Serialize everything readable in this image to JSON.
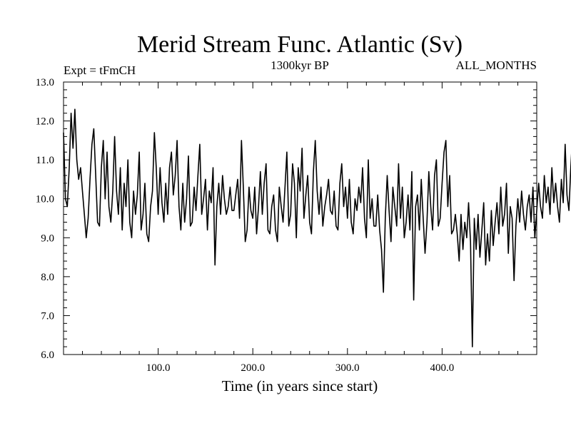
{
  "chart_data": {
    "type": "line",
    "title": "Merid Stream Func. Atlantic (Sv)",
    "subtitle_left": "Expt = tFmCH",
    "subtitle_center": "1300kyr BP",
    "subtitle_right": "ALL_MONTHS",
    "xlabel": "Time (in years since start)",
    "ylabel": "",
    "xlim": [
      0,
      500
    ],
    "ylim": [
      6.0,
      13.0
    ],
    "x_ticks": [
      100,
      200,
      300,
      400
    ],
    "x_tick_labels": [
      "100.0",
      "200.0",
      "300.0",
      "400.0"
    ],
    "y_ticks": [
      6,
      7,
      8,
      9,
      10,
      11,
      12,
      13
    ],
    "y_tick_labels": [
      "6.0",
      "7.0",
      "8.0",
      "9.0",
      "10.0",
      "11.0",
      "12.0",
      "13.0"
    ],
    "series": [
      {
        "name": "Merid Stream Func. Atlantic",
        "x_start": 0,
        "x_step": 2,
        "values": [
          11.7,
          10.0,
          9.8,
          10.8,
          12.2,
          11.3,
          12.3,
          11.0,
          10.5,
          10.8,
          10.2,
          9.6,
          9.0,
          9.5,
          10.5,
          11.4,
          11.8,
          10.6,
          9.4,
          9.3,
          10.8,
          11.5,
          10.0,
          11.2,
          9.8,
          9.4,
          10.2,
          11.6,
          10.2,
          9.6,
          10.8,
          9.2,
          10.4,
          9.8,
          11.0,
          9.4,
          9.0,
          10.2,
          9.6,
          10.1,
          11.2,
          9.2,
          9.6,
          10.4,
          9.1,
          8.9,
          9.8,
          10.2,
          11.7,
          10.8,
          9.6,
          10.8,
          9.9,
          9.4,
          10.4,
          9.6,
          10.8,
          11.2,
          10.1,
          10.6,
          11.5,
          9.8,
          9.2,
          10.4,
          9.4,
          10.0,
          11.1,
          9.3,
          9.4,
          10.3,
          9.7,
          10.6,
          11.4,
          9.6,
          10.0,
          10.5,
          9.2,
          10.2,
          9.9,
          10.8,
          8.3,
          9.8,
          10.4,
          9.6,
          10.6,
          10.0,
          9.6,
          9.8,
          10.3,
          9.7,
          9.7,
          10.1,
          10.5,
          9.5,
          11.5,
          10.3,
          8.9,
          9.2,
          10.3,
          9.7,
          9.5,
          10.3,
          9.1,
          9.8,
          10.7,
          9.6,
          10.4,
          10.9,
          9.2,
          9.1,
          9.8,
          10.1,
          9.2,
          8.9,
          10.3,
          9.8,
          9.4,
          10.3,
          11.2,
          9.3,
          9.6,
          10.9,
          10.4,
          9.0,
          10.8,
          10.2,
          11.3,
          9.5,
          10.1,
          10.6,
          9.4,
          9.1,
          10.7,
          11.5,
          10.2,
          9.6,
          10.3,
          9.3,
          9.8,
          10.1,
          10.5,
          9.7,
          9.6,
          10.2,
          9.3,
          9.2,
          10.4,
          10.9,
          9.8,
          10.3,
          9.5,
          10.5,
          9.4,
          9.1,
          10.0,
          9.7,
          10.3,
          9.9,
          10.8,
          9.5,
          9.0,
          11.0,
          9.5,
          10.0,
          9.3,
          9.3,
          10.1,
          9.2,
          8.7,
          7.6,
          9.5,
          10.6,
          9.7,
          8.9,
          10.3,
          9.8,
          9.3,
          10.9,
          9.5,
          10.3,
          9.0,
          9.4,
          10.1,
          9.2,
          10.7,
          7.4,
          9.8,
          10.1,
          9.2,
          10.5,
          9.5,
          8.6,
          9.4,
          10.7,
          9.8,
          9.2,
          10.6,
          11.0,
          9.3,
          9.5,
          10.4,
          11.2,
          11.5,
          9.8,
          10.6,
          9.1,
          9.2,
          9.6,
          9.1,
          8.4,
          9.6,
          8.7,
          9.4,
          9.0,
          9.9,
          8.9,
          6.2,
          9.5,
          8.7,
          9.6,
          8.5,
          9.2,
          9.9,
          8.3,
          9.1,
          8.4,
          9.7,
          8.8,
          9.4,
          9.9,
          9.1,
          10.3,
          9.3,
          9.6,
          10.4,
          8.6,
          9.8,
          9.5,
          7.9,
          9.3,
          10.0,
          9.4,
          10.2,
          9.6,
          9.2,
          9.8,
          10.1,
          9.4,
          10.3,
          9.0,
          9.7,
          10.4,
          9.8,
          9.5,
          10.6,
          9.9,
          10.3,
          9.6,
          10.8,
          9.9,
          10.4,
          9.8,
          9.4,
          10.5,
          9.9,
          11.4,
          10.1,
          9.7,
          10.8,
          11.7,
          9.6,
          10.4,
          11.8,
          9.8,
          10.4,
          11.2,
          10.6,
          9.1,
          9.8,
          10.4,
          11.2,
          9.3,
          9.5,
          10.8,
          9.9,
          11.0,
          10.1,
          9.4,
          10.6,
          10.3,
          10.9,
          9.6,
          10.4,
          9.5,
          9.4,
          10.1,
          9.2,
          10.7,
          9.5,
          10.5,
          11.2,
          9.6,
          10.3,
          11.1,
          9.3,
          9.8,
          10.1,
          9.0,
          10.6,
          9.7,
          10.7,
          9.3,
          10.3,
          11.2,
          9.3,
          10.3,
          9.9,
          10.3,
          10.6,
          9.4,
          10.8,
          9.2,
          10.5,
          10.9,
          9.8,
          10.2,
          9.4,
          10.1,
          9.6,
          11.2,
          9.7,
          10.1,
          10.6,
          9.4,
          10.5,
          9.6,
          10.6,
          10.9,
          10.0,
          9.8,
          10.7,
          10.1,
          9.4,
          10.4,
          9.9,
          10.3,
          11.0,
          9.8,
          10.2,
          10.6,
          9.7,
          10.3,
          9.4,
          9.9,
          10.6,
          9.5,
          10.2,
          10.8,
          9.6,
          10.3,
          9.8,
          10.5,
          9.7,
          10.0,
          9.4,
          8.5,
          9.3,
          8.7,
          7.6,
          9.4,
          9.9,
          9.1,
          8.7,
          9.0,
          9.6,
          8.9,
          9.7,
          7.4,
          9.3,
          9.6,
          9.5,
          10.2,
          9.7,
          9.2,
          10.6,
          9.8,
          10.2,
          9.4,
          8.2,
          9.5,
          10.1,
          9.2,
          9.9,
          10.3,
          9.5,
          10.6,
          9.7,
          9.1,
          9.9,
          7.7,
          9.8,
          10.4,
          9.2,
          9.8,
          10.4,
          9.0,
          9.5,
          10.2,
          9.7,
          10.3,
          9.0,
          9.5,
          8.6,
          9.6,
          8.6,
          9.2,
          9.9,
          9.3,
          9.8,
          10.1,
          9.2,
          9.7,
          10.8,
          9.9,
          10.5,
          11.4,
          10.2,
          11.8,
          12.7,
          10.6,
          10.3,
          11.2,
          9.9,
          10.6,
          9.8,
          9.2,
          10.0,
          9.6,
          8.9,
          9.2,
          8.4,
          9.1,
          9.6,
          9.4,
          10.2,
          10.9,
          9.5,
          10.5,
          9.8,
          9.4,
          10.3,
          9.9,
          10.1,
          9.7,
          10.1,
          9.8
        ]
      }
    ]
  }
}
